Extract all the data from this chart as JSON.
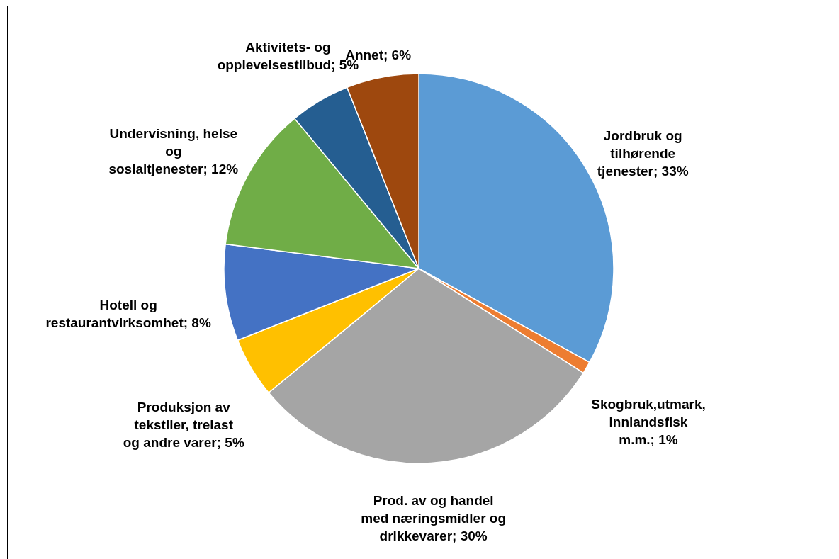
{
  "chart_data": {
    "type": "pie",
    "categories": [
      "Jordbruk og tilhørende tjenester",
      "Skogbruk,utmark, innlandsfisk m.m.",
      "Prod. av og handel med næringsmidler og drikkevarer",
      "Produksjon av tekstiler, trelast og andre varer",
      "Hotell og restaurantvirksomhet",
      "Undervisning, helse og sosialtjenester",
      "Aktivitets- og opplevelsestilbud",
      "Annet"
    ],
    "values": [
      33,
      1,
      30,
      5,
      8,
      12,
      5,
      6
    ],
    "value_labels": [
      "33%",
      "1%",
      "30%",
      "5%",
      "8%",
      "12%",
      "5%",
      "6%"
    ],
    "colors": [
      "#5b9bd5",
      "#ed7d31",
      "#a5a5a5",
      "#ffc000",
      "#4472c4",
      "#70ad47",
      "#255e91",
      "#9e480e"
    ],
    "legend": false
  }
}
